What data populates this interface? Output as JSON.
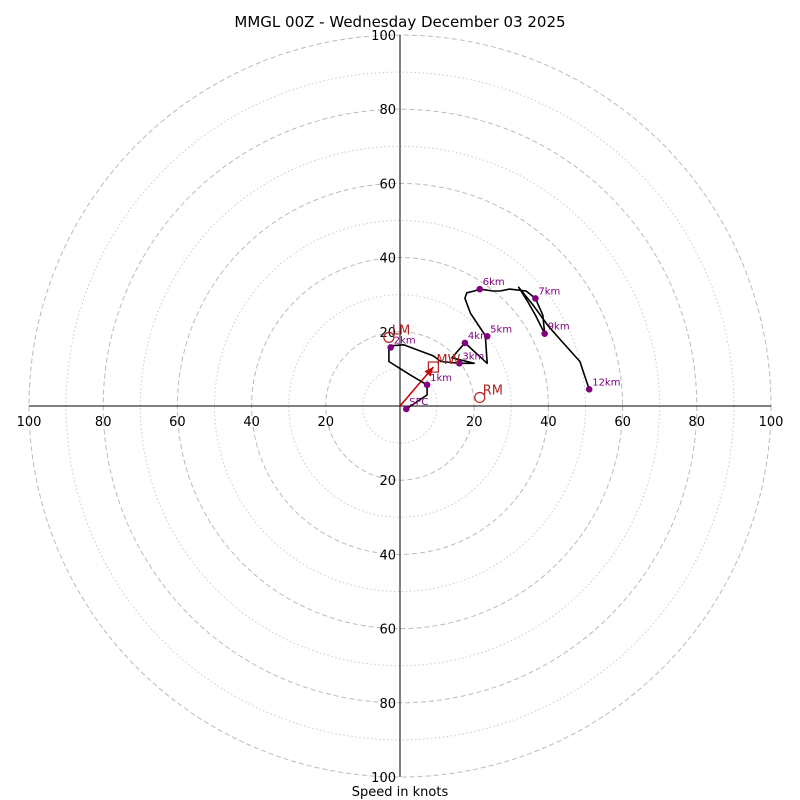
{
  "chart_data": {
    "type": "hodograph",
    "title": "MMGL 00Z - Wednesday December 03 2025",
    "xlabel": "Speed in knots",
    "units": "knots",
    "ring_max": 100,
    "major_rings": [
      20,
      40,
      60,
      80,
      100
    ],
    "minor_rings": [
      10,
      30,
      50,
      70,
      90
    ],
    "x_tick_labels": [
      {
        "value": -100,
        "label": "100"
      },
      {
        "value": -80,
        "label": "80"
      },
      {
        "value": -60,
        "label": "60"
      },
      {
        "value": -40,
        "label": "40"
      },
      {
        "value": -20,
        "label": "20"
      },
      {
        "value": 20,
        "label": "20"
      },
      {
        "value": 40,
        "label": "40"
      },
      {
        "value": 60,
        "label": "60"
      },
      {
        "value": 80,
        "label": "80"
      },
      {
        "value": 100,
        "label": "100"
      }
    ],
    "y_tick_labels": [
      {
        "value": 100,
        "label": "100"
      },
      {
        "value": 80,
        "label": "80"
      },
      {
        "value": 60,
        "label": "60"
      },
      {
        "value": 40,
        "label": "40"
      },
      {
        "value": 20,
        "label": "20"
      },
      {
        "value": -20,
        "label": "20"
      },
      {
        "value": -40,
        "label": "40"
      },
      {
        "value": -60,
        "label": "60"
      },
      {
        "value": -80,
        "label": "80"
      },
      {
        "value": -100,
        "label": "100"
      }
    ],
    "trace": {
      "name": "wind profile",
      "color": "#000000",
      "points": [
        [
          1.7,
          -0.8
        ],
        [
          7.3,
          3.0
        ],
        [
          7.3,
          5.7
        ],
        [
          2.7,
          8.4
        ],
        [
          -3.0,
          12.0
        ],
        [
          -3.0,
          16.2
        ],
        [
          1.0,
          16.5
        ],
        [
          5.0,
          15.0
        ],
        [
          9.0,
          13.5
        ],
        [
          11.0,
          12.0
        ],
        [
          16.0,
          11.5
        ],
        [
          20.0,
          11.5
        ],
        [
          14.0,
          13.0
        ],
        [
          17.5,
          17.0
        ],
        [
          23.5,
          11.5
        ],
        [
          23.0,
          19.0
        ],
        [
          19.0,
          25.0
        ],
        [
          17.5,
          29.0
        ],
        [
          18.0,
          30.5
        ],
        [
          20.0,
          31.0
        ],
        [
          21.5,
          31.5
        ],
        [
          25.0,
          31.0
        ],
        [
          27.0,
          31.0
        ],
        [
          29.5,
          31.5
        ],
        [
          34.0,
          31.0
        ],
        [
          36.5,
          29.0
        ],
        [
          38.5,
          24.5
        ],
        [
          39.0,
          19.5
        ],
        [
          36.5,
          24.5
        ],
        [
          34.5,
          28.0
        ],
        [
          32.0,
          32.0
        ],
        [
          36.0,
          27.0
        ],
        [
          40.0,
          21.5
        ],
        [
          44.0,
          17.0
        ],
        [
          48.5,
          12.0
        ],
        [
          51.0,
          4.5
        ]
      ]
    },
    "height_markers": [
      {
        "label": "SFC",
        "u": 1.7,
        "v": -0.8
      },
      {
        "label": "1km",
        "u": 7.3,
        "v": 5.7
      },
      {
        "label": "2km",
        "u": -2.5,
        "v": 15.8
      },
      {
        "label": "3km",
        "u": 16.0,
        "v": 11.5
      },
      {
        "label": "4km",
        "u": 17.5,
        "v": 17.0
      },
      {
        "label": "5km",
        "u": 23.5,
        "v": 18.8
      },
      {
        "label": "6km",
        "u": 21.5,
        "v": 31.5
      },
      {
        "label": "7km",
        "u": 36.5,
        "v": 29.0
      },
      {
        "label": "9km",
        "u": 39.0,
        "v": 19.5
      },
      {
        "label": "12km",
        "u": 51.0,
        "v": 4.5
      }
    ],
    "storm_motion": [
      {
        "label": "LM",
        "u": -3.0,
        "v": 18.5,
        "marker": "circle"
      },
      {
        "label": "MW",
        "u": 9.0,
        "v": 10.5,
        "marker": "square"
      },
      {
        "label": "RM",
        "u": 21.5,
        "v": 2.3,
        "marker": "circle"
      }
    ],
    "mean_wind_vector": {
      "from": [
        0.0,
        0.0
      ],
      "to": [
        9.0,
        10.5
      ],
      "color": "#cc0000"
    },
    "colors": {
      "rings": "#bbbbbb",
      "markers": "#800080",
      "storm_motion": "#b22222"
    }
  }
}
